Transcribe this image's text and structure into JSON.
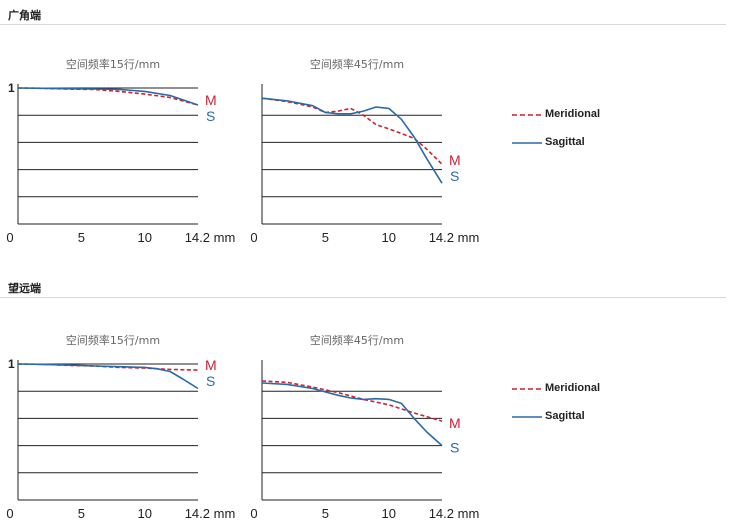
{
  "sections": [
    {
      "title": "广角端"
    },
    {
      "title": "望远端"
    }
  ],
  "legend": {
    "meridional": {
      "label": "Meridional",
      "color": "#cc2233",
      "style": "dashed"
    },
    "sagittal": {
      "label": "Sagittal",
      "color": "#2a6aa6",
      "style": "solid"
    }
  },
  "chart_data": [
    {
      "type": "line",
      "section": "广角端",
      "title": "空间频率15行/mm",
      "xlabel": "",
      "ylabel": "",
      "xlim": [
        0,
        14.2
      ],
      "ylim": [
        0,
        1
      ],
      "x_ticks": [
        "0",
        "5",
        "10",
        "14.2 mm"
      ],
      "y_ticks": [
        "1"
      ],
      "gridlines_y": [
        0.2,
        0.4,
        0.6,
        0.8,
        1.0
      ],
      "series": [
        {
          "name": "M",
          "key": "meridional",
          "x": [
            0,
            2,
            4,
            6,
            8,
            10,
            12,
            14.2
          ],
          "y": [
            1.0,
            0.998,
            0.992,
            0.99,
            0.975,
            0.955,
            0.93,
            0.875
          ]
        },
        {
          "name": "S",
          "key": "sagittal",
          "x": [
            0,
            2,
            4,
            6,
            8,
            10,
            12,
            14.2
          ],
          "y": [
            1.0,
            0.998,
            0.995,
            0.993,
            0.99,
            0.975,
            0.945,
            0.875
          ]
        }
      ]
    },
    {
      "type": "line",
      "section": "广角端",
      "title": "空间频率45行/mm",
      "xlabel": "",
      "ylabel": "",
      "xlim": [
        0,
        14.2
      ],
      "ylim": [
        0,
        1
      ],
      "x_ticks": [
        "0",
        "5",
        "10",
        "14.2 mm"
      ],
      "y_ticks": [],
      "gridlines_y": [
        0.2,
        0.4,
        0.6,
        0.8
      ],
      "series": [
        {
          "name": "M",
          "key": "meridional",
          "x": [
            0,
            2,
            4,
            5,
            6,
            7,
            8,
            9,
            10,
            12,
            13,
            14.2
          ],
          "y": [
            0.925,
            0.9,
            0.86,
            0.82,
            0.83,
            0.85,
            0.8,
            0.73,
            0.7,
            0.63,
            0.55,
            0.44
          ]
        },
        {
          "name": "S",
          "key": "sagittal",
          "x": [
            0,
            2,
            4,
            5,
            6,
            7,
            8,
            9,
            10,
            11,
            12,
            13,
            14.2
          ],
          "y": [
            0.925,
            0.905,
            0.87,
            0.82,
            0.81,
            0.81,
            0.83,
            0.86,
            0.85,
            0.77,
            0.64,
            0.48,
            0.3
          ]
        }
      ]
    },
    {
      "type": "line",
      "section": "望远端",
      "title": "空间频率15行/mm",
      "xlabel": "",
      "ylabel": "",
      "xlim": [
        0,
        14.2
      ],
      "ylim": [
        0,
        1
      ],
      "x_ticks": [
        "0",
        "5",
        "10",
        "14.2 mm"
      ],
      "y_ticks": [
        "1"
      ],
      "gridlines_y": [
        0.2,
        0.4,
        0.6,
        0.8,
        1.0
      ],
      "series": [
        {
          "name": "M",
          "key": "meridional",
          "x": [
            0,
            2,
            4,
            6,
            8,
            10,
            12,
            14.2
          ],
          "y": [
            1.0,
            0.998,
            0.99,
            0.985,
            0.975,
            0.97,
            0.96,
            0.955
          ]
        },
        {
          "name": "S",
          "key": "sagittal",
          "x": [
            0,
            2,
            4,
            6,
            8,
            10,
            11,
            12,
            13,
            14.2
          ],
          "y": [
            1.0,
            0.997,
            0.992,
            0.985,
            0.98,
            0.975,
            0.965,
            0.945,
            0.89,
            0.82
          ]
        }
      ]
    },
    {
      "type": "line",
      "section": "望远端",
      "title": "空间频率45行/mm",
      "xlabel": "",
      "ylabel": "",
      "xlim": [
        0,
        14.2
      ],
      "ylim": [
        0,
        1
      ],
      "x_ticks": [
        "0",
        "5",
        "10",
        "14.2 mm"
      ],
      "y_ticks": [],
      "gridlines_y": [
        0.2,
        0.4,
        0.6,
        0.8
      ],
      "series": [
        {
          "name": "M",
          "key": "meridional",
          "x": [
            0,
            2,
            4,
            6,
            8,
            10,
            12,
            14.2
          ],
          "y": [
            0.875,
            0.865,
            0.83,
            0.79,
            0.74,
            0.7,
            0.64,
            0.58
          ]
        },
        {
          "name": "S",
          "key": "sagittal",
          "x": [
            0,
            2,
            4,
            6,
            7,
            8,
            9,
            10,
            11,
            12,
            13,
            14.2
          ],
          "y": [
            0.86,
            0.85,
            0.82,
            0.77,
            0.75,
            0.74,
            0.745,
            0.74,
            0.71,
            0.6,
            0.5,
            0.4
          ]
        }
      ]
    }
  ]
}
